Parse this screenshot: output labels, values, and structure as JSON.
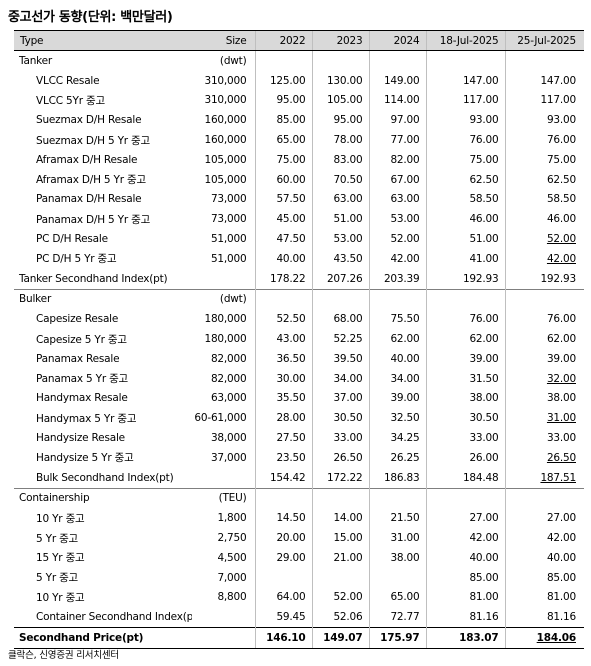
{
  "title": "중고선가 동향(단위: 백만달러)",
  "header": {
    "type": "Type",
    "size": "Size",
    "cols": [
      "2022",
      "2023",
      "2024",
      "18-Jul-2025",
      "25-Jul-2025"
    ]
  },
  "rows": [
    {
      "kind": "group",
      "label": "Tanker",
      "size": "(dwt)",
      "v": [
        "",
        "",
        "",
        "",
        ""
      ]
    },
    {
      "kind": "item",
      "label": "VLCC Resale",
      "size": "310,000",
      "v": [
        "125.00",
        "130.00",
        "149.00",
        "147.00",
        "147.00"
      ]
    },
    {
      "kind": "item",
      "label": "VLCC 5Yr 중고",
      "size": "310,000",
      "v": [
        "95.00",
        "105.00",
        "114.00",
        "117.00",
        "117.00"
      ]
    },
    {
      "kind": "item",
      "label": "Suezmax D/H Resale",
      "size": "160,000",
      "v": [
        "85.00",
        "95.00",
        "97.00",
        "93.00",
        "93.00"
      ]
    },
    {
      "kind": "item",
      "label": "Suezmax D/H 5 Yr 중고",
      "size": "160,000",
      "v": [
        "65.00",
        "78.00",
        "77.00",
        "76.00",
        "76.00"
      ]
    },
    {
      "kind": "item",
      "label": "Aframax D/H Resale",
      "size": "105,000",
      "v": [
        "75.00",
        "83.00",
        "82.00",
        "75.00",
        "75.00"
      ]
    },
    {
      "kind": "item",
      "label": "Aframax D/H 5 Yr 중고",
      "size": "105,000",
      "v": [
        "60.00",
        "70.50",
        "67.00",
        "62.50",
        "62.50"
      ]
    },
    {
      "kind": "item",
      "label": "Panamax D/H Resale",
      "size": "73,000",
      "v": [
        "57.50",
        "63.00",
        "63.00",
        "58.50",
        "58.50"
      ]
    },
    {
      "kind": "item",
      "label": "Panamax D/H 5 Yr 중고",
      "size": "73,000",
      "v": [
        "45.00",
        "51.00",
        "53.00",
        "46.00",
        "46.00"
      ]
    },
    {
      "kind": "item",
      "label": "PC D/H Resale",
      "size": "51,000",
      "v": [
        "47.50",
        "53.00",
        "52.00",
        "51.00",
        "52.00"
      ],
      "u": true
    },
    {
      "kind": "item",
      "label": "PC D/H 5 Yr 중고",
      "size": "51,000",
      "v": [
        "40.00",
        "43.50",
        "42.00",
        "41.00",
        "42.00"
      ],
      "u": true
    },
    {
      "kind": "index",
      "label": "Tanker Secondhand Index(pt)",
      "size": "",
      "v": [
        "178.22",
        "207.26",
        "203.39",
        "192.93",
        "192.93"
      ]
    },
    {
      "kind": "group",
      "label": "Bulker",
      "size": "(dwt)",
      "v": [
        "",
        "",
        "",
        "",
        ""
      ],
      "sep": true
    },
    {
      "kind": "item",
      "label": "Capesize Resale",
      "size": "180,000",
      "v": [
        "52.50",
        "68.00",
        "75.50",
        "76.00",
        "76.00"
      ]
    },
    {
      "kind": "item",
      "label": "Capesize 5 Yr 중고",
      "size": "180,000",
      "v": [
        "43.00",
        "52.25",
        "62.00",
        "62.00",
        "62.00"
      ]
    },
    {
      "kind": "item",
      "label": "Panamax Resale",
      "size": "82,000",
      "v": [
        "36.50",
        "39.50",
        "40.00",
        "39.00",
        "39.00"
      ]
    },
    {
      "kind": "item",
      "label": "Panamax 5 Yr 중고",
      "size": "82,000",
      "v": [
        "30.00",
        "34.00",
        "34.00",
        "31.50",
        "32.00"
      ],
      "u": true
    },
    {
      "kind": "item",
      "label": "Handymax Resale",
      "size": "63,000",
      "v": [
        "35.50",
        "37.00",
        "39.00",
        "38.00",
        "38.00"
      ]
    },
    {
      "kind": "item",
      "label": "Handymax 5 Yr 중고",
      "size": "60-61,000",
      "v": [
        "28.00",
        "30.50",
        "32.50",
        "30.50",
        "31.00"
      ],
      "u": true
    },
    {
      "kind": "item",
      "label": "Handysize Resale",
      "size": "38,000",
      "v": [
        "27.50",
        "33.00",
        "34.25",
        "33.00",
        "33.00"
      ]
    },
    {
      "kind": "item",
      "label": "Handysize 5 Yr 중고",
      "size": "37,000",
      "v": [
        "23.50",
        "26.50",
        "26.25",
        "26.00",
        "26.50"
      ],
      "u": true
    },
    {
      "kind": "subindex",
      "label": "Bulk Secondhand Index(pt)",
      "size": "",
      "v": [
        "154.42",
        "172.22",
        "186.83",
        "184.48",
        "187.51"
      ],
      "u": true
    },
    {
      "kind": "group",
      "label": "Containership",
      "size": "(TEU)",
      "v": [
        "",
        "",
        "",
        "",
        ""
      ],
      "sep": true
    },
    {
      "kind": "item",
      "label": "10 Yr 중고",
      "size": "1,800",
      "v": [
        "14.50",
        "14.00",
        "21.50",
        "27.00",
        "27.00"
      ]
    },
    {
      "kind": "item",
      "label": "5 Yr 중고",
      "size": "2,750",
      "v": [
        "20.00",
        "15.00",
        "31.00",
        "42.00",
        "42.00"
      ]
    },
    {
      "kind": "item",
      "label": "15 Yr 중고",
      "size": "4,500",
      "v": [
        "29.00",
        "21.00",
        "38.00",
        "40.00",
        "40.00"
      ]
    },
    {
      "kind": "item",
      "label": "5 Yr 중고",
      "size": "7,000",
      "v": [
        "",
        "",
        "",
        "85.00",
        "85.00"
      ]
    },
    {
      "kind": "item",
      "label": "10 Yr 중고",
      "size": "8,800",
      "v": [
        "64.00",
        "52.00",
        "65.00",
        "81.00",
        "81.00"
      ]
    },
    {
      "kind": "subindex",
      "label": "Container Secondhand Index(pt)",
      "size": "",
      "v": [
        "59.45",
        "52.06",
        "72.77",
        "81.16",
        "81.16"
      ]
    },
    {
      "kind": "total",
      "label": "Secondhand Price(pt)",
      "size": "",
      "v": [
        "146.10",
        "149.07",
        "175.97",
        "183.07",
        "184.06"
      ],
      "u": true
    }
  ],
  "source": "클락슨, 신영증권 리서치센터"
}
